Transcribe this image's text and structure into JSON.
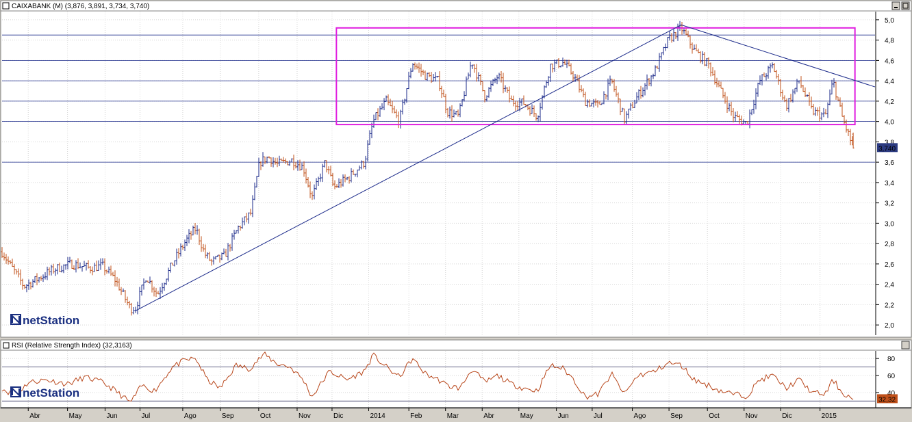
{
  "window": {
    "main_title": "CAIXABANK (M) (3,876, 3,891, 3,734, 3,740)",
    "rsi_title": "RSI (Relative Strength Index) (32,3163)",
    "logo_text": "netStation"
  },
  "colors": {
    "background": "#ffffff",
    "frame": "#d4d0c8",
    "up_bar": "#1b2a8a",
    "down_bar": "#c0501a",
    "rectangle": "#e01ee0",
    "trendline": "#1b2a8a",
    "rsi_line": "#b8461a",
    "price_badge": "#2b3a80",
    "rsi_badge": "#c0501a"
  },
  "chart_data": [
    {
      "type": "ohlc",
      "name": "CAIXABANK",
      "y_ticks": [
        "2,0",
        "2,2",
        "2,4",
        "2,6",
        "2,8",
        "3,0",
        "3,2",
        "3,4",
        "3,6",
        "3,8",
        "4,0",
        "4,2",
        "4,4",
        "4,6",
        "4,8",
        "5,0"
      ],
      "ylim": [
        1.9,
        5.08
      ],
      "last_price_label": "3,740",
      "last_price": 3.74,
      "horizontal_levels": [
        4.85,
        4.6,
        4.4,
        4.2,
        4.0,
        3.6
      ],
      "channel_box": {
        "x_start": 0.383,
        "x_end": 0.977,
        "y_low": 3.97,
        "y_high": 4.92
      },
      "trendlines": [
        {
          "from": [
            0.153,
            2.14
          ],
          "to": [
            0.778,
            4.95
          ]
        },
        {
          "from": [
            0.778,
            4.95
          ],
          "to": [
            1.0,
            4.34
          ]
        }
      ],
      "price_path": [
        [
          0.0,
          2.72
        ],
        [
          0.01,
          2.58
        ],
        [
          0.025,
          2.38
        ],
        [
          0.04,
          2.45
        ],
        [
          0.06,
          2.55
        ],
        [
          0.08,
          2.6
        ],
        [
          0.1,
          2.56
        ],
        [
          0.115,
          2.58
        ],
        [
          0.13,
          2.44
        ],
        [
          0.147,
          2.16
        ],
        [
          0.153,
          2.17
        ],
        [
          0.165,
          2.48
        ],
        [
          0.178,
          2.3
        ],
        [
          0.195,
          2.6
        ],
        [
          0.21,
          2.82
        ],
        [
          0.222,
          2.95
        ],
        [
          0.232,
          2.7
        ],
        [
          0.24,
          2.62
        ],
        [
          0.255,
          2.68
        ],
        [
          0.27,
          2.95
        ],
        [
          0.285,
          3.1
        ],
        [
          0.295,
          3.6
        ],
        [
          0.305,
          3.65
        ],
        [
          0.315,
          3.58
        ],
        [
          0.332,
          3.62
        ],
        [
          0.345,
          3.55
        ],
        [
          0.355,
          3.25
        ],
        [
          0.37,
          3.6
        ],
        [
          0.38,
          3.35
        ],
        [
          0.397,
          3.45
        ],
        [
          0.415,
          3.6
        ],
        [
          0.425,
          4.0
        ],
        [
          0.44,
          4.2
        ],
        [
          0.455,
          4.0
        ],
        [
          0.47,
          4.58
        ],
        [
          0.485,
          4.45
        ],
        [
          0.5,
          4.4
        ],
        [
          0.51,
          4.1
        ],
        [
          0.523,
          4.05
        ],
        [
          0.538,
          4.6
        ],
        [
          0.553,
          4.25
        ],
        [
          0.568,
          4.45
        ],
        [
          0.583,
          4.2
        ],
        [
          0.598,
          4.18
        ],
        [
          0.613,
          4.05
        ],
        [
          0.628,
          4.55
        ],
        [
          0.643,
          4.58
        ],
        [
          0.655,
          4.45
        ],
        [
          0.668,
          4.2
        ],
        [
          0.683,
          4.15
        ],
        [
          0.698,
          4.4
        ],
        [
          0.713,
          4.02
        ],
        [
          0.728,
          4.25
        ],
        [
          0.748,
          4.5
        ],
        [
          0.763,
          4.8
        ],
        [
          0.778,
          4.92
        ],
        [
          0.793,
          4.7
        ],
        [
          0.81,
          4.55
        ],
        [
          0.823,
          4.3
        ],
        [
          0.838,
          4.05
        ],
        [
          0.853,
          3.98
        ],
        [
          0.868,
          4.4
        ],
        [
          0.883,
          4.55
        ],
        [
          0.898,
          4.15
        ],
        [
          0.913,
          4.4
        ],
        [
          0.928,
          4.1
        ],
        [
          0.943,
          4.05
        ],
        [
          0.952,
          4.4
        ],
        [
          0.962,
          4.05
        ],
        [
          0.975,
          3.74
        ]
      ]
    },
    {
      "type": "line",
      "name": "RSI",
      "value_label": "32,32",
      "last_value": 32.32,
      "y_ticks": [
        "40",
        "60",
        "80"
      ],
      "ylim": [
        23,
        89
      ],
      "reference_lines": [
        70,
        30
      ],
      "rsi_path": [
        [
          0.0,
          45
        ],
        [
          0.015,
          36
        ],
        [
          0.03,
          52
        ],
        [
          0.05,
          55
        ],
        [
          0.075,
          50
        ],
        [
          0.095,
          58
        ],
        [
          0.115,
          52
        ],
        [
          0.13,
          42
        ],
        [
          0.147,
          28
        ],
        [
          0.16,
          48
        ],
        [
          0.175,
          42
        ],
        [
          0.195,
          70
        ],
        [
          0.21,
          78
        ],
        [
          0.222,
          80
        ],
        [
          0.235,
          55
        ],
        [
          0.25,
          45
        ],
        [
          0.268,
          72
        ],
        [
          0.283,
          68
        ],
        [
          0.3,
          85
        ],
        [
          0.315,
          74
        ],
        [
          0.33,
          70
        ],
        [
          0.345,
          55
        ],
        [
          0.355,
          35
        ],
        [
          0.375,
          65
        ],
        [
          0.395,
          55
        ],
        [
          0.415,
          65
        ],
        [
          0.425,
          84
        ],
        [
          0.44,
          70
        ],
        [
          0.455,
          58
        ],
        [
          0.47,
          80
        ],
        [
          0.485,
          62
        ],
        [
          0.5,
          55
        ],
        [
          0.51,
          48
        ],
        [
          0.525,
          45
        ],
        [
          0.538,
          68
        ],
        [
          0.553,
          52
        ],
        [
          0.568,
          60
        ],
        [
          0.583,
          50
        ],
        [
          0.598,
          45
        ],
        [
          0.613,
          42
        ],
        [
          0.628,
          72
        ],
        [
          0.643,
          68
        ],
        [
          0.655,
          55
        ],
        [
          0.668,
          35
        ],
        [
          0.683,
          38
        ],
        [
          0.698,
          62
        ],
        [
          0.713,
          38
        ],
        [
          0.728,
          60
        ],
        [
          0.748,
          65
        ],
        [
          0.763,
          75
        ],
        [
          0.778,
          72
        ],
        [
          0.793,
          55
        ],
        [
          0.81,
          48
        ],
        [
          0.823,
          42
        ],
        [
          0.838,
          38
        ],
        [
          0.853,
          36
        ],
        [
          0.868,
          55
        ],
        [
          0.883,
          60
        ],
        [
          0.898,
          45
        ],
        [
          0.913,
          55
        ],
        [
          0.928,
          40
        ],
        [
          0.943,
          38
        ],
        [
          0.952,
          55
        ],
        [
          0.962,
          40
        ],
        [
          0.975,
          32
        ]
      ]
    }
  ],
  "x_axis": {
    "labels": [
      {
        "label": "Abr",
        "x": 0.03
      },
      {
        "label": "May",
        "x": 0.075
      },
      {
        "label": "Jun",
        "x": 0.118
      },
      {
        "label": "Jul",
        "x": 0.158
      },
      {
        "label": "Ago",
        "x": 0.207
      },
      {
        "label": "Sep",
        "x": 0.25
      },
      {
        "label": "Oct",
        "x": 0.294
      },
      {
        "label": "Nov",
        "x": 0.338
      },
      {
        "label": "Dic",
        "x": 0.378
      },
      {
        "label": "2014",
        "x": 0.42
      },
      {
        "label": "Feb",
        "x": 0.466
      },
      {
        "label": "Mar",
        "x": 0.508
      },
      {
        "label": "Abr",
        "x": 0.55
      },
      {
        "label": "May",
        "x": 0.592
      },
      {
        "label": "Jun",
        "x": 0.635
      },
      {
        "label": "Jul",
        "x": 0.676
      },
      {
        "label": "Ago",
        "x": 0.722
      },
      {
        "label": "Sep",
        "x": 0.764
      },
      {
        "label": "Oct",
        "x": 0.808
      },
      {
        "label": "Nov",
        "x": 0.85
      },
      {
        "label": "Dic",
        "x": 0.892
      },
      {
        "label": "2015",
        "x": 0.937
      }
    ]
  }
}
